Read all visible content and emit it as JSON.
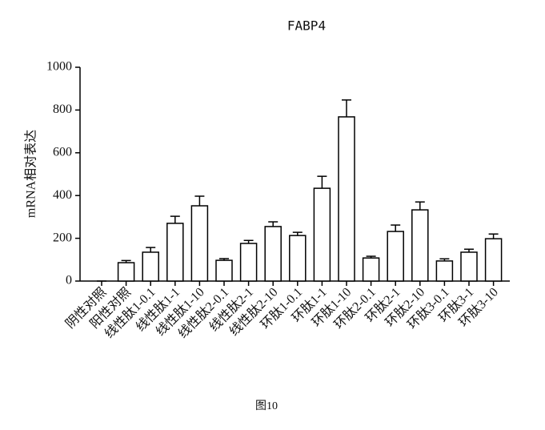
{
  "chart_data": {
    "type": "bar",
    "title": "FABP4",
    "y_label": "mRNA相对表达",
    "caption": "图10",
    "categories": [
      "阴性对照",
      "阳性对照",
      "线性肽1-0.1",
      "线性肽1-1",
      "线性肽1-10",
      "线性肽2-0.1",
      "线性肽2-1",
      "线性肽2-10",
      "环肽1-0.1",
      "环肽1-1",
      "环肽1-10",
      "环肽2-0.1",
      "环肽2-1",
      "环肽2-10",
      "环肽3-0.1",
      "环肽3-1",
      "环肽3-10"
    ],
    "values": [
      0,
      86,
      135,
      270,
      352,
      97,
      176,
      255,
      213,
      434,
      768,
      108,
      232,
      333,
      94,
      135,
      198
    ],
    "errors": [
      0,
      10,
      22,
      33,
      45,
      8,
      14,
      22,
      15,
      56,
      79,
      8,
      30,
      37,
      10,
      14,
      22
    ],
    "color": "#ffffff",
    "ylim": [
      0,
      1000
    ],
    "yticks": [
      0,
      200,
      400,
      600,
      800,
      1000
    ]
  }
}
